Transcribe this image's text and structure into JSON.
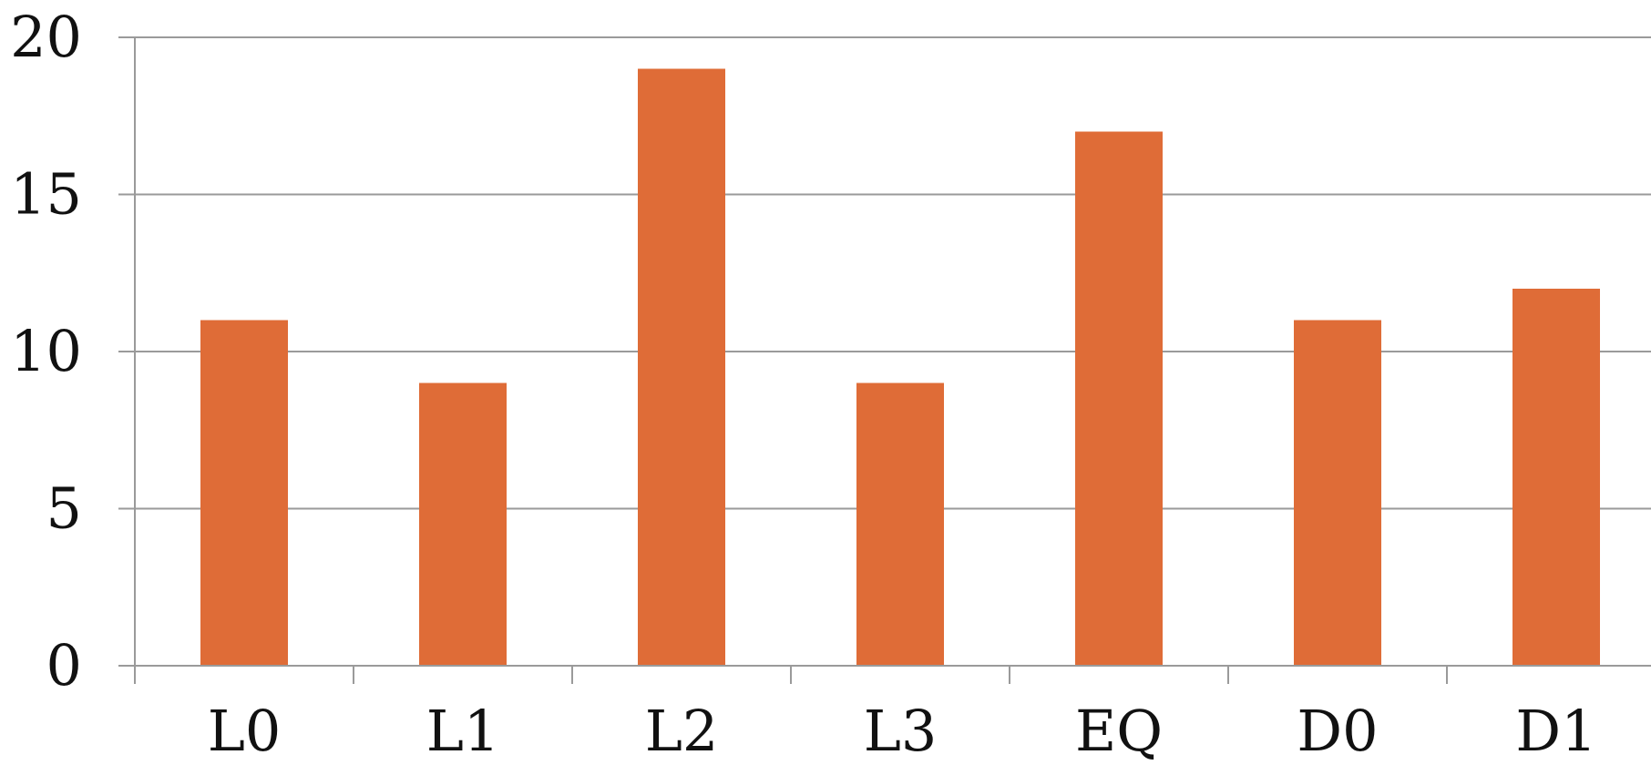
{
  "chart_data": {
    "type": "bar",
    "title": "",
    "xlabel": "",
    "ylabel": "",
    "categories": [
      "L0",
      "L1",
      "L2",
      "L3",
      "EQ",
      "D0",
      "D1"
    ],
    "values": [
      11,
      9,
      19,
      9,
      17,
      11,
      12
    ],
    "ylim": [
      0,
      20
    ],
    "yticks": [
      0,
      5,
      10,
      15,
      20
    ],
    "ytick_labels": [
      "0",
      "5",
      "10",
      "15",
      "20"
    ],
    "grid": "horizontal",
    "bar_color": "#DF6C37",
    "grid_color": "#9A9A9A",
    "legend": "none"
  }
}
